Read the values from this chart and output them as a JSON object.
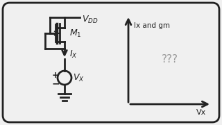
{
  "bg_color": "#f0f0f0",
  "border_color": "#222222",
  "text_color": "#222222",
  "gray_color": "#999999",
  "vdd_label": "$V_{DD}$",
  "m1_label": "$M_1$",
  "ix_label": "$I_X$",
  "vx_label": "$V_X$",
  "yaxis_label": "Ix and gm",
  "xaxis_label": "Vx",
  "question_label": "???",
  "figsize": [
    3.2,
    1.8
  ],
  "dpi": 100
}
